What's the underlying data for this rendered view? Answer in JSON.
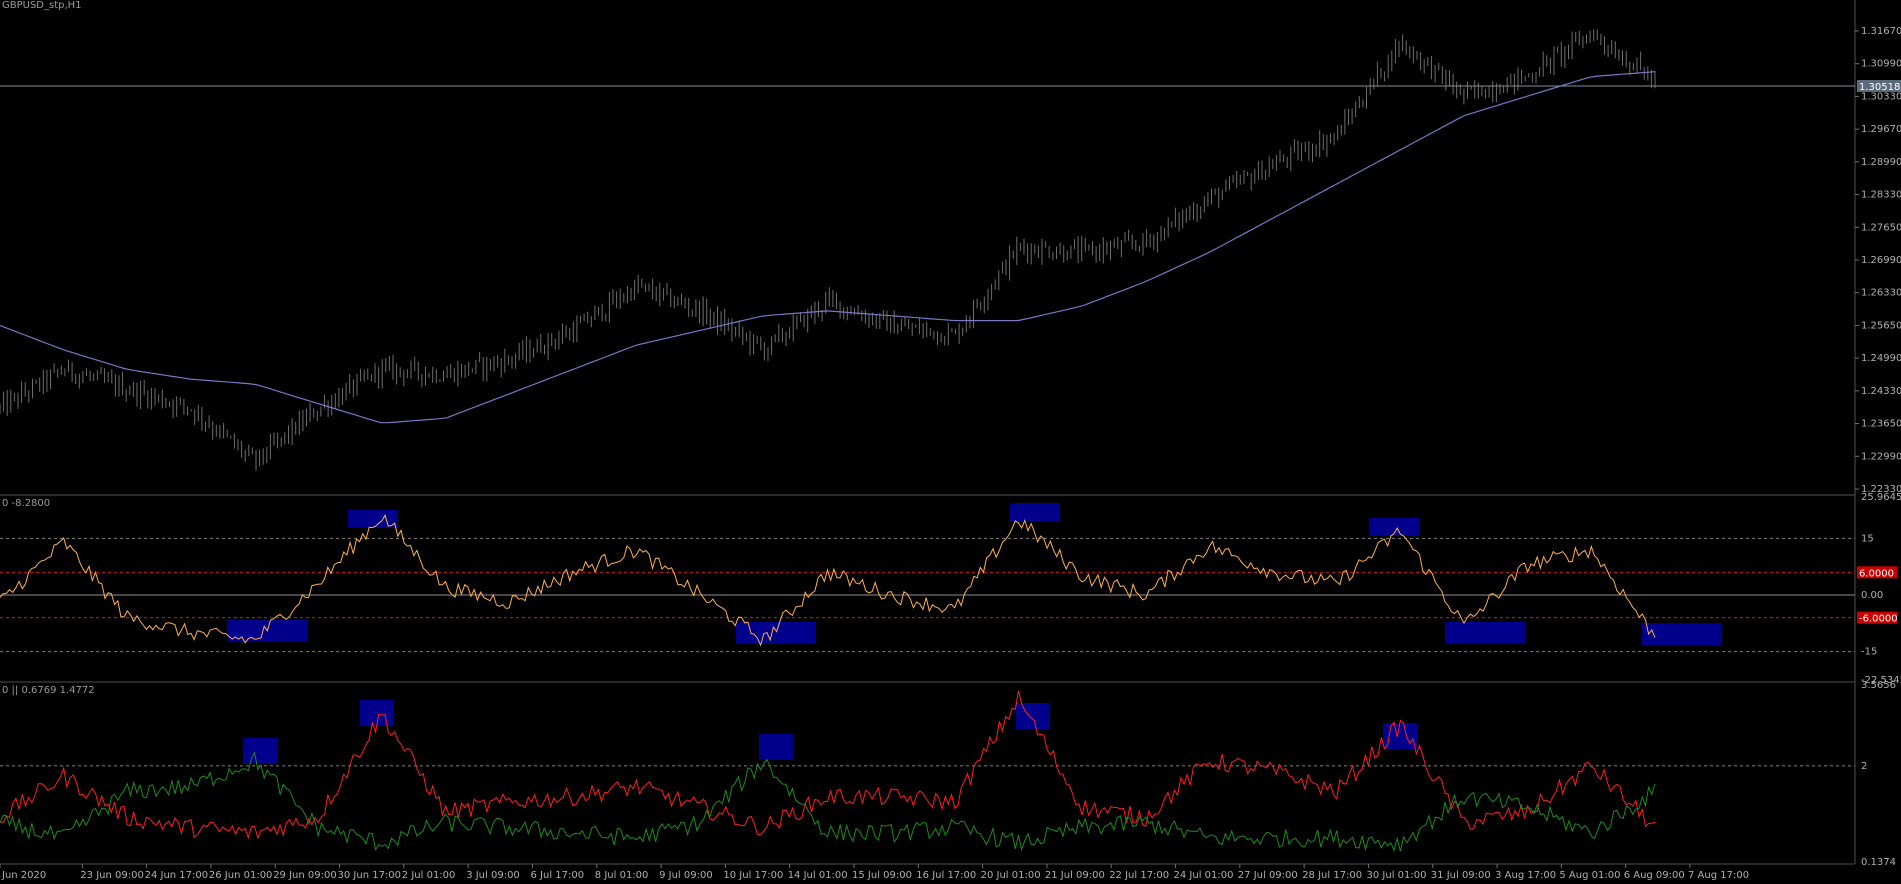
{
  "chart_title": "GBPUSD_stp,H1",
  "price_panel": {
    "current_price_label": "1.30518",
    "y_ticks": [
      "1.31670",
      "1.30990",
      "1.30330",
      "1.29670",
      "1.28990",
      "1.28330",
      "1.27650",
      "1.26990",
      "1.26330",
      "1.25650",
      "1.24990",
      "1.24330",
      "1.23650",
      "1.22990",
      "1.22330"
    ]
  },
  "osc1": {
    "header": "0 -8.2800",
    "y_ticks": [
      "25.9645",
      "15",
      "0.00",
      "-15",
      "-22.5345"
    ],
    "level_labels": [
      "6.0000",
      "-6.0000"
    ]
  },
  "osc2": {
    "header": "0 || 0.6769 1.4772",
    "y_ticks": [
      "3.5656",
      "2",
      "0.1374"
    ]
  },
  "x_ticks": [
    "Jun 2020",
    "23 Jun 09:00",
    "24 Jun 17:00",
    "26 Jun 01:00",
    "29 Jun 09:00",
    "30 Jun 17:00",
    "2 Jul 01:00",
    "3 Jul 09:00",
    "6 Jul 17:00",
    "8 Jul 01:00",
    "9 Jul 09:00",
    "10 Jul 17:00",
    "14 Jul 01:00",
    "15 Jul 09:00",
    "16 Jul 17:00",
    "20 Jul 01:00",
    "21 Jul 09:00",
    "22 Jul 17:00",
    "24 Jul 01:00",
    "27 Jul 09:00",
    "28 Jul 17:00",
    "30 Jul 01:00",
    "31 Jul 09:00",
    "3 Aug 17:00",
    "5 Aug 01:00",
    "6 Aug 09:00",
    "7 Aug 17:00"
  ],
  "colors": {
    "background": "#000000",
    "candles": "#6e6e6e",
    "moving_average": "#7878c8",
    "osc1_line": "#ffb050",
    "osc2_red": "#ff2020",
    "osc2_green": "#1e8c1e",
    "highlight": "#00008c",
    "level_red": "#c02020",
    "grid_dashed": "#808080",
    "price_label_bg": "#5a6a7a",
    "level_label_bg": "#c80000"
  },
  "chart_data": [
    {
      "type": "line",
      "name_ref": "price",
      "x": [
        "Jun 2020",
        "23 Jun 09:00",
        "24 Jun 17:00",
        "26 Jun 01:00",
        "29 Jun 09:00",
        "30 Jun 17:00",
        "2 Jul 01:00",
        "3 Jul 09:00",
        "6 Jul 17:00",
        "8 Jul 01:00",
        "9 Jul 09:00",
        "10 Jul 17:00",
        "14 Jul 01:00",
        "15 Jul 09:00",
        "16 Jul 17:00",
        "20 Jul 01:00",
        "21 Jul 09:00",
        "22 Jul 17:00",
        "24 Jul 01:00",
        "27 Jul 09:00",
        "28 Jul 17:00",
        "30 Jul 01:00",
        "31 Jul 09:00",
        "3 Aug 17:00",
        "5 Aug 01:00",
        "6 Aug 09:00",
        "7 Aug 17:00"
      ],
      "series": [
        {
          "values": [
            1.24,
            1.248,
            1.244,
            1.24,
            1.229,
            1.24,
            1.248,
            1.247,
            1.25,
            1.256,
            1.265,
            1.26,
            1.252,
            1.262,
            1.257,
            1.255,
            1.273,
            1.272,
            1.274,
            1.283,
            1.29,
            1.296,
            1.315,
            1.304,
            1.308,
            1.317,
            1.307
          ]
        },
        {
          "values": [
            1.257,
            1.252,
            1.248,
            1.246,
            1.245,
            1.241,
            1.237,
            1.238,
            1.243,
            1.248,
            1.253,
            1.256,
            1.259,
            1.26,
            1.259,
            1.258,
            1.258,
            1.261,
            1.266,
            1.272,
            1.279,
            1.286,
            1.293,
            1.3,
            1.304,
            1.308,
            1.309
          ]
        }
      ],
      "ylim": [
        1.2233,
        1.32
      ]
    },
    {
      "type": "line",
      "x": [
        "Jun 2020",
        "23 Jun 09:00",
        "24 Jun 17:00",
        "26 Jun 01:00",
        "29 Jun 09:00",
        "30 Jun 17:00",
        "2 Jul 01:00",
        "3 Jul 09:00",
        "6 Jul 17:00",
        "8 Jul 01:00",
        "9 Jul 09:00",
        "10 Jul 17:00",
        "14 Jul 01:00",
        "15 Jul 09:00",
        "16 Jul 17:00",
        "20 Jul 01:00",
        "21 Jul 09:00",
        "22 Jul 17:00",
        "24 Jul 01:00",
        "27 Jul 09:00",
        "28 Jul 17:00",
        "30 Jul 01:00",
        "31 Jul 09:00",
        "3 Aug 17:00",
        "5 Aug 01:00",
        "6 Aug 09:00",
        "7 Aug 17:00"
      ],
      "series": [
        {
          "values": [
            -2,
            14,
            -6,
            -10,
            -12,
            3,
            21,
            2,
            -2,
            6,
            12,
            0,
            -12,
            6,
            0,
            -4,
            20,
            5,
            0,
            13,
            6,
            3,
            17,
            -8,
            8,
            12,
            -11
          ]
        }
      ],
      "levels": [
        15,
        6,
        0,
        -6,
        -15
      ],
      "ylim": [
        -22.5345,
        25.9645
      ]
    },
    {
      "type": "line",
      "x": [
        "Jun 2020",
        "23 Jun 09:00",
        "24 Jun 17:00",
        "26 Jun 01:00",
        "29 Jun 09:00",
        "30 Jun 17:00",
        "2 Jul 01:00",
        "3 Jul 09:00",
        "6 Jul 17:00",
        "8 Jul 01:00",
        "9 Jul 09:00",
        "10 Jul 17:00",
        "14 Jul 01:00",
        "15 Jul 09:00",
        "16 Jul 17:00",
        "20 Jul 01:00",
        "21 Jul 09:00",
        "22 Jul 17:00",
        "24 Jul 01:00",
        "27 Jul 09:00",
        "28 Jul 17:00",
        "30 Jul 01:00",
        "31 Jul 09:00",
        "3 Aug 17:00",
        "5 Aug 01:00",
        "6 Aug 09:00",
        "7 Aug 17:00"
      ],
      "series": [
        {
          "values": [
            1.0,
            1.8,
            1.0,
            0.8,
            0.7,
            1.0,
            3.0,
            1.1,
            1.3,
            1.4,
            1.6,
            1.2,
            0.8,
            1.4,
            1.4,
            1.3,
            3.3,
            1.2,
            1.0,
            2.1,
            1.9,
            1.5,
            2.8,
            0.9,
            1.1,
            2.0,
            0.8
          ]
        },
        {
          "values": [
            0.9,
            0.6,
            1.5,
            1.6,
            2.1,
            0.8,
            0.5,
            0.9,
            0.8,
            0.7,
            0.6,
            0.9,
            2.1,
            0.7,
            0.7,
            0.8,
            0.5,
            0.8,
            0.9,
            0.6,
            0.6,
            0.6,
            0.5,
            1.4,
            1.2,
            0.7,
            1.5
          ]
        }
      ],
      "levels": [
        2
      ],
      "ylim": [
        0.1374,
        3.5656
      ]
    }
  ]
}
